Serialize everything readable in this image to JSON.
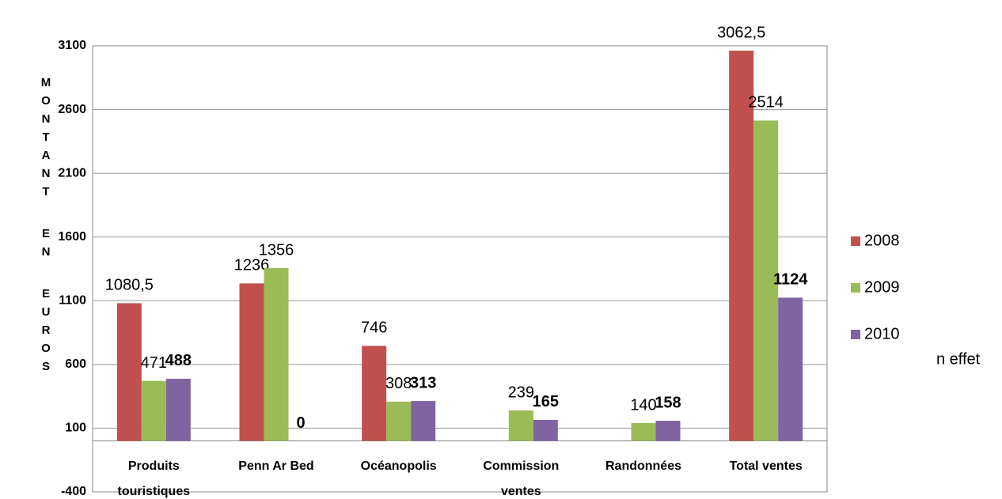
{
  "chart_data": {
    "type": "bar",
    "y_label": "MONTANT EN EUROS",
    "categories": [
      "Produits touristiques",
      "Penn Ar Bed",
      "Océanopolis",
      "Commission ventes",
      "Randonnées",
      "Total ventes"
    ],
    "series": [
      {
        "name": "2008",
        "color": "#c0504d",
        "values": [
          1080.5,
          1236,
          746,
          null,
          null,
          3062.5
        ],
        "value_labels": [
          "1080,5",
          "1236",
          "746",
          null,
          null,
          "3062,5"
        ]
      },
      {
        "name": "2009",
        "color": "#9bbb59",
        "values": [
          471,
          1356,
          308,
          239,
          140,
          2514
        ]
      },
      {
        "name": "2010",
        "color": "#8064a2",
        "values": [
          488,
          0,
          313,
          165,
          158,
          1124
        ]
      }
    ],
    "ylim": [
      -400,
      3100
    ],
    "yticks": [
      -400,
      100,
      600,
      1100,
      1600,
      2100,
      2600,
      3100
    ],
    "grid": true,
    "legend": "right",
    "annotation": "n effet"
  }
}
